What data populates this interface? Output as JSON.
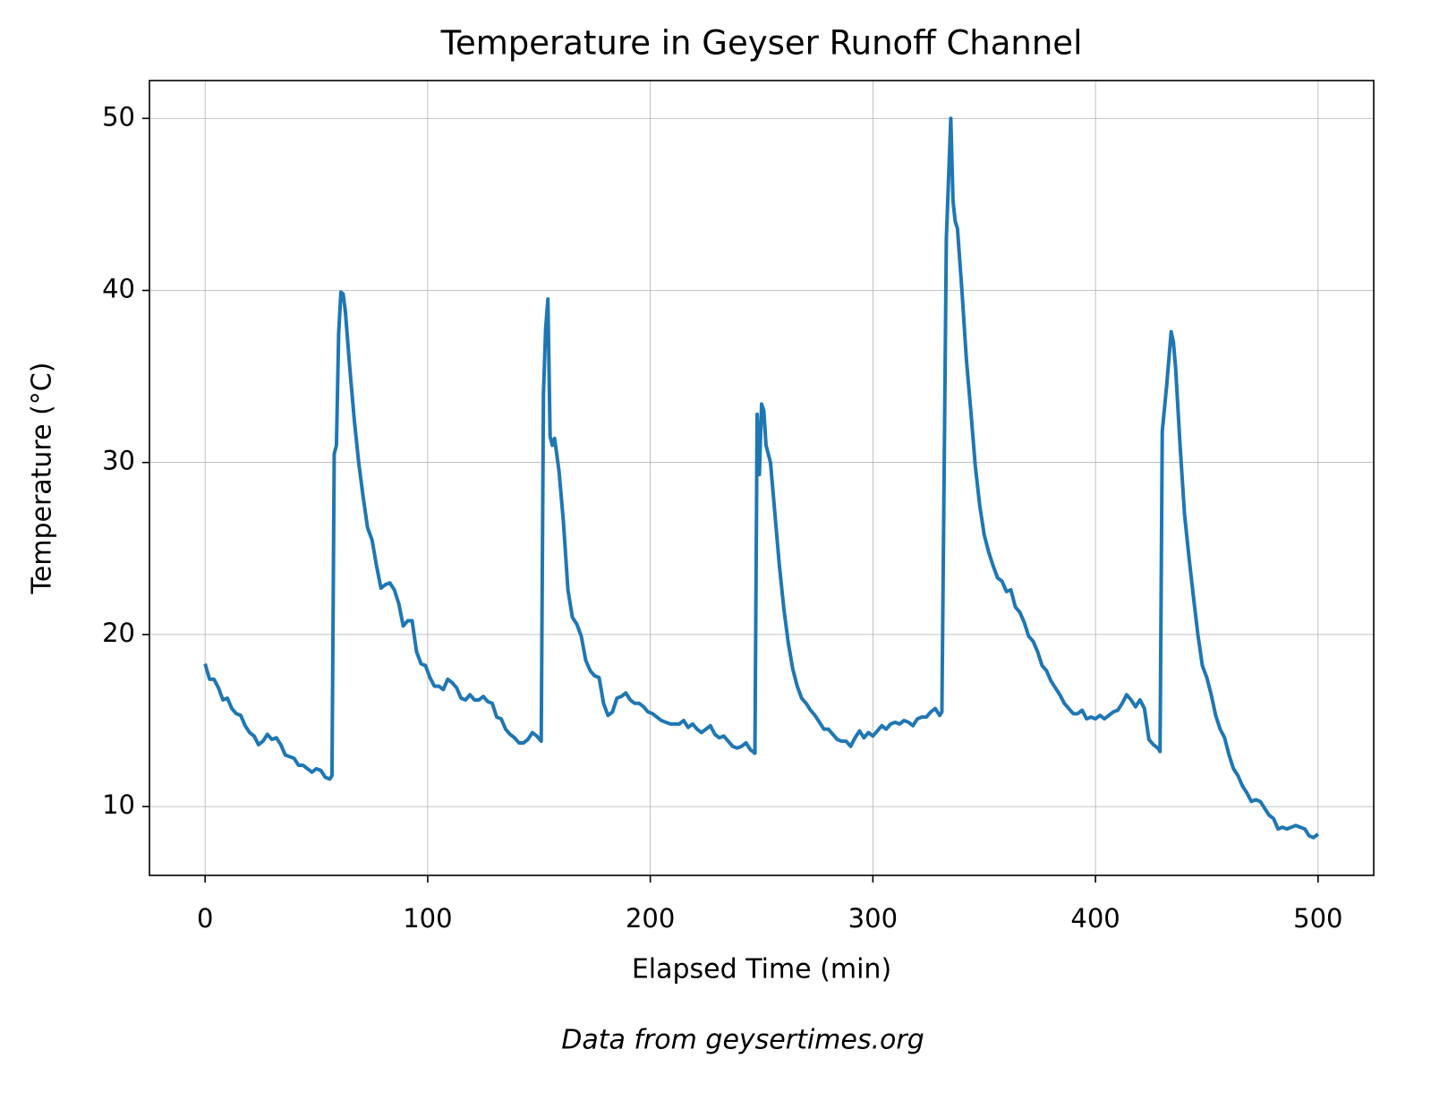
{
  "chart_data": {
    "type": "line",
    "title": "Temperature in Geyser Runoff Channel",
    "xlabel": "Elapsed Time (min)",
    "ylabel": "Temperature (°C)",
    "caption": "Data from geysertimes.org",
    "xlim": [
      -25,
      525
    ],
    "ylim": [
      6.0,
      52.2
    ],
    "xticks": [
      0,
      100,
      200,
      300,
      400,
      500
    ],
    "yticks": [
      10,
      20,
      30,
      40,
      50
    ],
    "grid": true,
    "series": [
      {
        "name": "Temperature",
        "color": "#1f77b4",
        "x": [
          0,
          2,
          4,
          6,
          8,
          10,
          12,
          14,
          16,
          18,
          20,
          22,
          24,
          26,
          28,
          30,
          32,
          34,
          36,
          38,
          40,
          42,
          44,
          46,
          48,
          50,
          52,
          54,
          56,
          57,
          58,
          59,
          60,
          61,
          62,
          63,
          65,
          67,
          69,
          71,
          73,
          75,
          77,
          79,
          81,
          83,
          85,
          87,
          89,
          91,
          93,
          95,
          97,
          99,
          101,
          103,
          105,
          107,
          109,
          111,
          113,
          115,
          117,
          119,
          121,
          123,
          125,
          127,
          129,
          131,
          133,
          135,
          137,
          139,
          141,
          143,
          145,
          147,
          149,
          151,
          152,
          153,
          154,
          155,
          156,
          157,
          159,
          161,
          163,
          165,
          167,
          169,
          171,
          173,
          175,
          177,
          179,
          181,
          183,
          185,
          187,
          189,
          191,
          193,
          195,
          197,
          199,
          201,
          203,
          205,
          207,
          209,
          211,
          213,
          215,
          217,
          219,
          221,
          223,
          225,
          227,
          229,
          231,
          233,
          235,
          237,
          239,
          241,
          243,
          245,
          247,
          248,
          249,
          250,
          251,
          252,
          254,
          256,
          258,
          260,
          262,
          264,
          266,
          268,
          270,
          272,
          274,
          276,
          278,
          280,
          282,
          284,
          286,
          288,
          290,
          292,
          294,
          296,
          298,
          300,
          302,
          304,
          306,
          308,
          310,
          312,
          314,
          316,
          318,
          320,
          322,
          324,
          326,
          328,
          330,
          331,
          333,
          335,
          336,
          337,
          338,
          340,
          342,
          344,
          346,
          348,
          350,
          352,
          354,
          356,
          358,
          360,
          362,
          364,
          366,
          368,
          370,
          372,
          374,
          376,
          378,
          380,
          382,
          384,
          386,
          388,
          390,
          392,
          394,
          396,
          398,
          400,
          402,
          404,
          406,
          408,
          410,
          412,
          414,
          416,
          418,
          420,
          422,
          424,
          426,
          428,
          429,
          430,
          432,
          434,
          435,
          436,
          438,
          440,
          442,
          444,
          446,
          448,
          450,
          452,
          454,
          456,
          458,
          460,
          462,
          464,
          466,
          468,
          470,
          472,
          474,
          476,
          478,
          480,
          482,
          484,
          486,
          488,
          490,
          492,
          494,
          496,
          498,
          500
        ],
        "values": [
          18.3,
          17.4,
          17.4,
          16.9,
          16.2,
          16.3,
          15.7,
          15.4,
          15.3,
          14.7,
          14.3,
          14.1,
          13.6,
          13.8,
          14.2,
          13.9,
          14.0,
          13.6,
          13.0,
          12.9,
          12.8,
          12.4,
          12.4,
          12.2,
          12.0,
          12.2,
          12.1,
          11.7,
          11.6,
          11.8,
          30.5,
          31.0,
          37.5,
          39.9,
          39.8,
          38.8,
          35.5,
          32.5,
          30.0,
          28.0,
          26.2,
          25.5,
          24.0,
          22.7,
          22.9,
          23.0,
          22.6,
          21.8,
          20.5,
          20.8,
          20.8,
          19.0,
          18.3,
          18.2,
          17.5,
          17.0,
          17.0,
          16.8,
          17.4,
          17.2,
          16.9,
          16.3,
          16.2,
          16.5,
          16.2,
          16.2,
          16.4,
          16.1,
          16.0,
          15.2,
          15.1,
          14.5,
          14.2,
          14.0,
          13.7,
          13.7,
          13.9,
          14.3,
          14.1,
          13.8,
          34.0,
          37.8,
          39.5,
          31.5,
          31.0,
          31.4,
          29.5,
          26.5,
          22.6,
          21.0,
          20.6,
          19.9,
          18.5,
          17.9,
          17.6,
          17.5,
          16.0,
          15.3,
          15.5,
          16.3,
          16.4,
          16.6,
          16.2,
          16.0,
          16.0,
          15.8,
          15.5,
          15.4,
          15.2,
          15.0,
          14.9,
          14.8,
          14.8,
          14.8,
          15.0,
          14.6,
          14.8,
          14.5,
          14.3,
          14.5,
          14.7,
          14.2,
          14.0,
          14.1,
          13.8,
          13.5,
          13.4,
          13.5,
          13.7,
          13.3,
          13.1,
          32.8,
          29.3,
          33.4,
          33.0,
          31.0,
          30.0,
          27.0,
          24.0,
          21.5,
          19.5,
          18.0,
          17.0,
          16.3,
          16.0,
          15.6,
          15.3,
          14.9,
          14.5,
          14.5,
          14.2,
          13.9,
          13.8,
          13.8,
          13.5,
          14.0,
          14.4,
          14.0,
          14.3,
          14.1,
          14.4,
          14.7,
          14.5,
          14.8,
          14.9,
          14.8,
          15.0,
          14.9,
          14.7,
          15.1,
          15.2,
          15.2,
          15.5,
          15.7,
          15.3,
          15.5,
          43.0,
          50.0,
          45.2,
          44.0,
          43.6,
          40.0,
          36.0,
          33.0,
          29.8,
          27.5,
          25.8,
          24.8,
          24.0,
          23.3,
          23.1,
          22.5,
          22.6,
          21.6,
          21.3,
          20.7,
          19.9,
          19.6,
          19.0,
          18.2,
          17.9,
          17.3,
          16.9,
          16.5,
          16.0,
          15.7,
          15.4,
          15.4,
          15.6,
          15.1,
          15.2,
          15.1,
          15.3,
          15.1,
          15.3,
          15.5,
          15.6,
          16.0,
          16.5,
          16.2,
          15.8,
          16.2,
          15.7,
          13.9,
          13.6,
          13.4,
          13.2,
          31.8,
          34.5,
          37.6,
          37.0,
          35.5,
          31.0,
          27.0,
          24.5,
          22.2,
          20.0,
          18.2,
          17.5,
          16.5,
          15.3,
          14.5,
          14.0,
          13.0,
          12.2,
          11.8,
          11.2,
          10.8,
          10.3,
          10.4,
          10.3,
          9.9,
          9.5,
          9.3,
          8.7,
          8.8,
          8.7,
          8.8,
          8.9,
          8.8,
          8.7,
          8.3,
          8.2,
          8.4
        ]
      }
    ]
  }
}
